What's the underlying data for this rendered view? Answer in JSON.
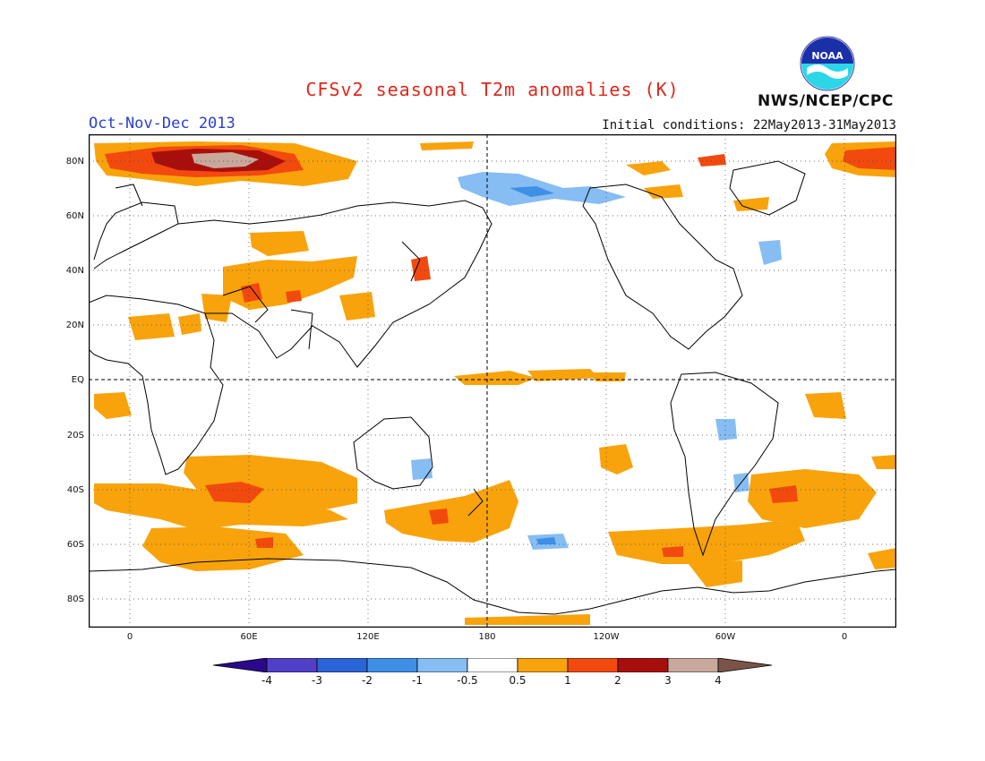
{
  "header": {
    "title": "CFSv2 seasonal T2m anomalies (K)",
    "season": "Oct-Nov-Dec 2013",
    "initial_conditions": "Initial conditions: 22May2013-31May2013",
    "agency": "NWS/NCEP/CPC",
    "logo_text": "NOAA"
  },
  "map": {
    "latitude_labels": [
      "80N",
      "60N",
      "40N",
      "20N",
      "EQ",
      "20S",
      "40S",
      "60S",
      "80S"
    ],
    "longitude_labels": [
      "0",
      "60E",
      "120E",
      "180",
      "120W",
      "60W",
      "0"
    ],
    "projection": "cylindrical equidistant, centered near 180",
    "gridlines": "dotted",
    "reference_lines": [
      "equator dashed",
      "180 meridian dashed"
    ]
  },
  "colorbar": {
    "labels": [
      "-4",
      "-3",
      "-2",
      "-1",
      "-0.5",
      "0.5",
      "1",
      "2",
      "3",
      "4"
    ],
    "colors": [
      "#2a0a8a",
      "#5040c8",
      "#2a64d6",
      "#3f8fe6",
      "#86bdf2",
      "#ffffff",
      "#f8a30b",
      "#f24a0e",
      "#a80f0c",
      "#c9a89c",
      "#7b5449"
    ],
    "unit": "K"
  }
}
